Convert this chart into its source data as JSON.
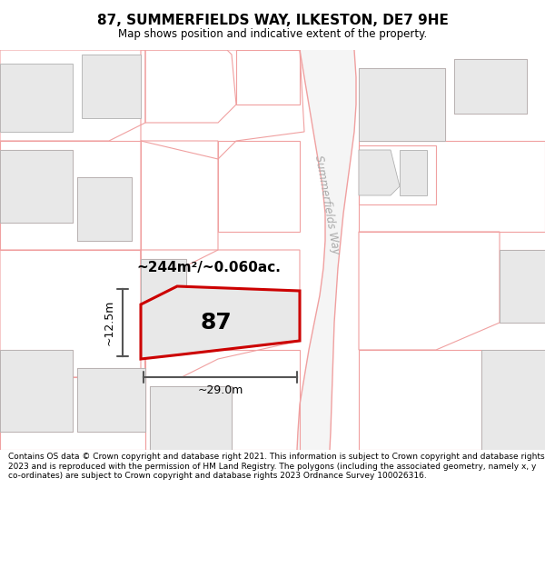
{
  "title": "87, SUMMERFIELDS WAY, ILKESTON, DE7 9HE",
  "subtitle": "Map shows position and indicative extent of the property.",
  "footer": "Contains OS data © Crown copyright and database right 2021. This information is subject to Crown copyright and database rights 2023 and is reproduced with the permission of HM Land Registry. The polygons (including the associated geometry, namely x, y co-ordinates) are subject to Crown copyright and database rights 2023 Ordnance Survey 100026316.",
  "bg_color": "#ffffff",
  "map_bg_color": "#ffffff",
  "building_fill": "#e8e8e8",
  "building_edge": "#b0b0b0",
  "pink": "#f0a0a0",
  "red": "#cc0000",
  "grey_line": "#c0c0c0",
  "road_fill": "#f0f0f0",
  "property_label": "87",
  "area_label": "~244m²/~0.060ac.",
  "width_label": "~29.0m",
  "height_label": "~12.5m",
  "street_label": "Summerfields Way",
  "title_fontsize": 11,
  "subtitle_fontsize": 8.5,
  "footer_fontsize": 6.5
}
